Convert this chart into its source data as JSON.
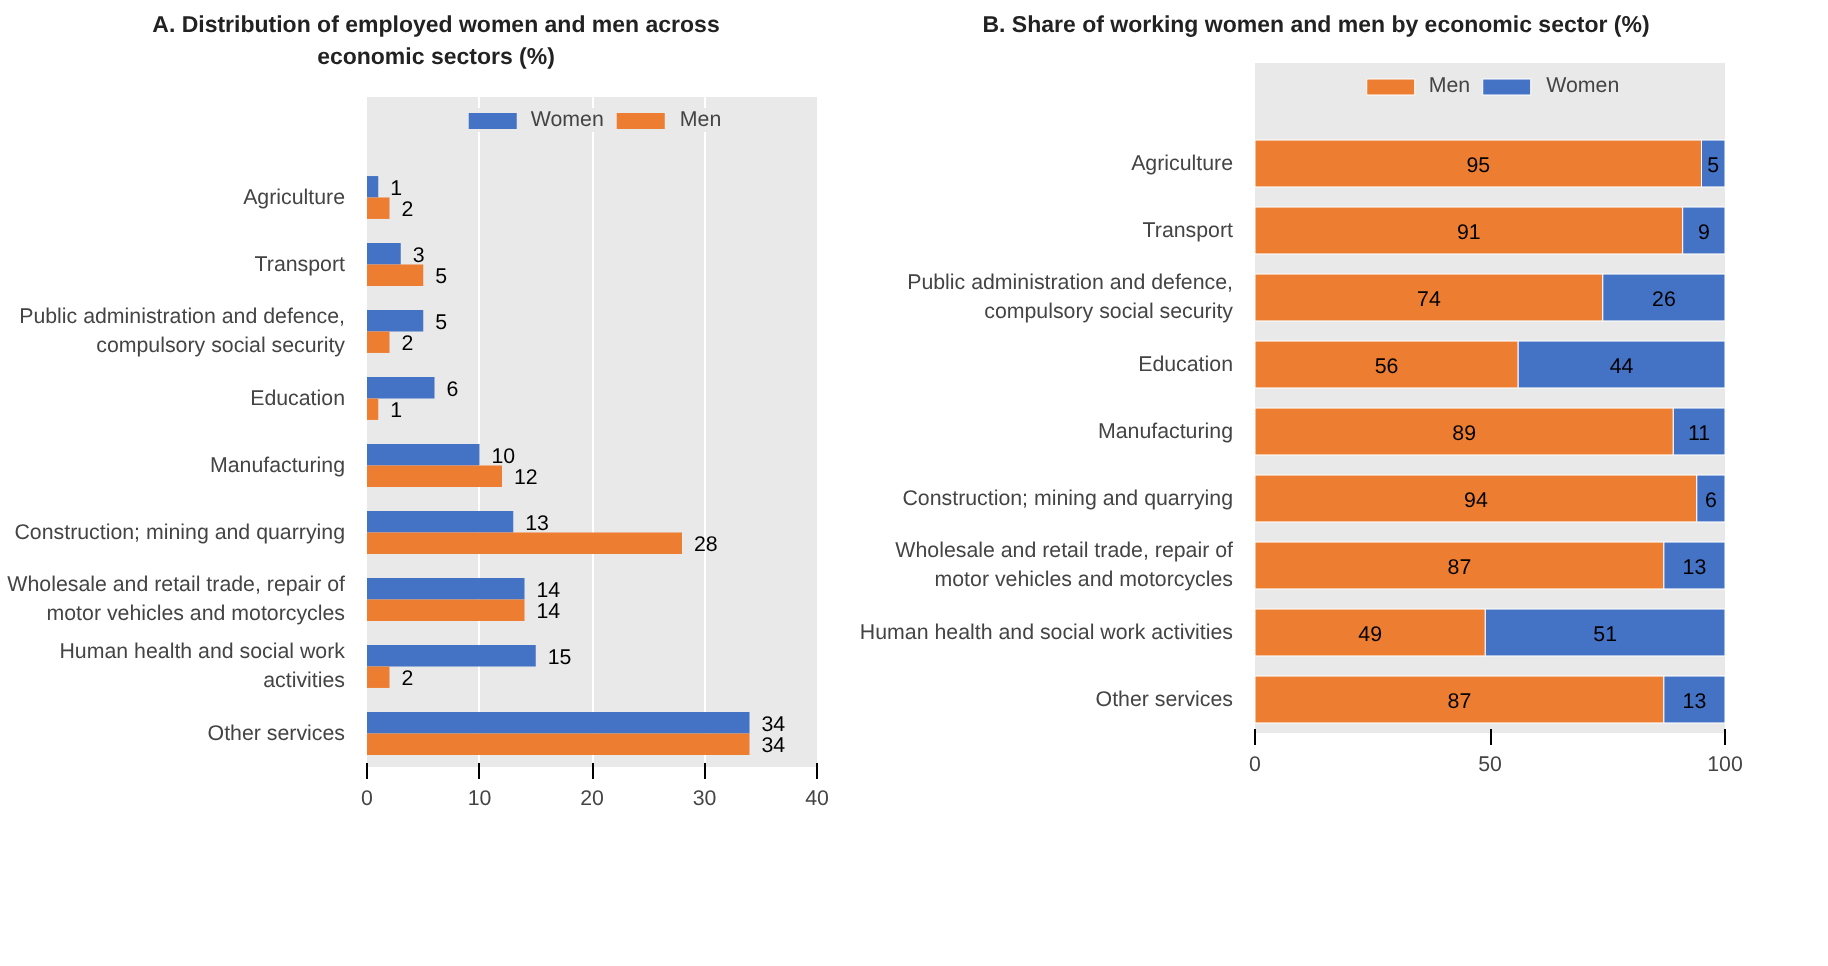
{
  "chart_data": [
    {
      "type": "bar",
      "orientation": "horizontal",
      "title": "A. Distribution of employed women and men across\neconomic sectors (%)",
      "categories": [
        "Agriculture",
        "Transport",
        "Public administration and defence,\ncompulsory social security",
        "Education",
        "Manufacturing",
        "Construction; mining and quarrying",
        "Wholesale and retail trade, repair of\nmotor vehicles and motorcycles",
        "Human health and social work\nactivities",
        "Other services"
      ],
      "series": [
        {
          "name": "Women",
          "color": "#4472c4",
          "values": [
            1,
            3,
            5,
            6,
            10,
            13,
            14,
            15,
            34
          ]
        },
        {
          "name": "Men",
          "color": "#ed7d31",
          "values": [
            2,
            5,
            2,
            1,
            12,
            28,
            14,
            2,
            34
          ]
        }
      ],
      "xlim": [
        0,
        40
      ],
      "xticks": [
        0,
        10,
        20,
        30,
        40
      ],
      "grid": "x",
      "legend": "top",
      "data_labels": true
    },
    {
      "type": "bar",
      "orientation": "horizontal",
      "stacked": true,
      "title": "B. Share of working women and men by economic sector (%)",
      "categories": [
        "Agriculture",
        "Transport",
        "Public administration and defence,\ncompulsory social security",
        "Education",
        "Manufacturing",
        "Construction; mining and quarrying",
        "Wholesale and retail trade, repair of\nmotor vehicles and motorcycles",
        "Human health and social work activities",
        "Other services"
      ],
      "series": [
        {
          "name": "Men",
          "color": "#ed7d31",
          "values": [
            95,
            91,
            74,
            56,
            89,
            94,
            87,
            49,
            87
          ]
        },
        {
          "name": "Women",
          "color": "#4472c4",
          "values": [
            5,
            9,
            26,
            44,
            11,
            6,
            13,
            51,
            13
          ]
        }
      ],
      "xlim": [
        0,
        100
      ],
      "xticks": [
        0,
        50,
        100
      ],
      "legend": "top",
      "data_labels": true
    }
  ]
}
